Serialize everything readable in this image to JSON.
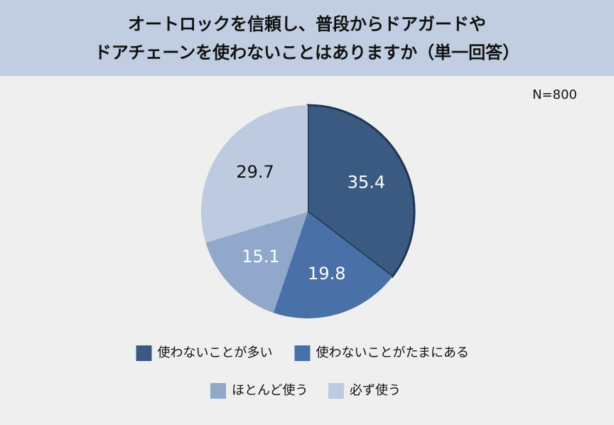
{
  "chart_data": {
    "type": "pie",
    "title": "オートロックを信頼し、普段からドアガードや\nドアチェーンを使わないことはありますか（単一回答）",
    "annotation": "N=800",
    "categories": [
      "使わないことが多い",
      "使わないことがたまにある",
      "ほとんど使う",
      "必ず使う"
    ],
    "values": [
      35.4,
      19.8,
      15.1,
      29.7
    ],
    "colors": [
      "#3a5a82",
      "#4a71a7",
      "#91a8cb",
      "#bdcae0"
    ],
    "legend": "bottom"
  }
}
